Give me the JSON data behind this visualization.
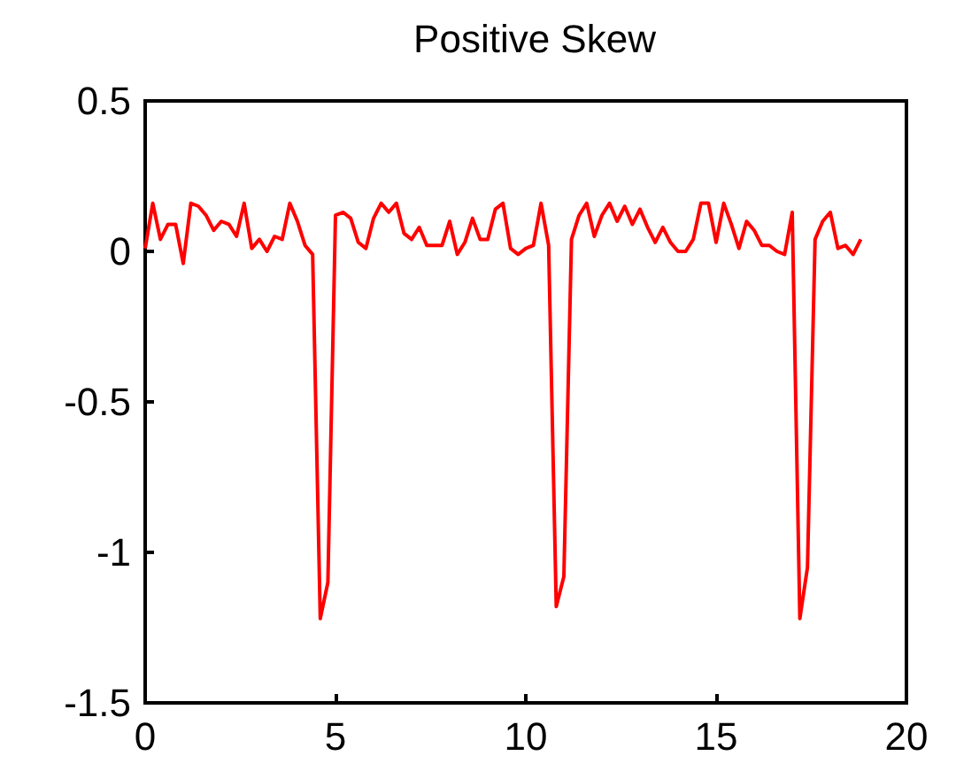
{
  "chart_data": {
    "type": "line",
    "title": "Positive Skew",
    "x": [
      0,
      0.2,
      0.4,
      0.6,
      0.8,
      1,
      1.2,
      1.4,
      1.6,
      1.8,
      2,
      2.2,
      2.4,
      2.6,
      2.8,
      3,
      3.2,
      3.4,
      3.6,
      3.8,
      4,
      4.2,
      4.4,
      4.6,
      4.8,
      5,
      5.2,
      5.4,
      5.6,
      5.8,
      6,
      6.2,
      6.4,
      6.6,
      6.8,
      7,
      7.2,
      7.4,
      7.6,
      7.8,
      8,
      8.2,
      8.4,
      8.6,
      8.8,
      9,
      9.2,
      9.4,
      9.6,
      9.8,
      10,
      10.2,
      10.4,
      10.6,
      10.8,
      11,
      11.2,
      11.4,
      11.6,
      11.8,
      12,
      12.2,
      12.4,
      12.6,
      12.8,
      13,
      13.2,
      13.4,
      13.6,
      13.8,
      14,
      14.2,
      14.4,
      14.6,
      14.8,
      15,
      15.2,
      15.4,
      15.6,
      15.8,
      16,
      16.2,
      16.4,
      16.6,
      16.8,
      17,
      17.2,
      17.4,
      17.6,
      17.8,
      18,
      18.2,
      18.4,
      18.6,
      18.8
    ],
    "series": [
      {
        "color": "#ff0000",
        "values": [
          0.01,
          0.16,
          0.04,
          0.09,
          0.09,
          -0.04,
          0.16,
          0.15,
          0.12,
          0.07,
          0.1,
          0.09,
          0.05,
          0.16,
          0.01,
          0.04,
          0,
          0.05,
          0.04,
          0.16,
          0.1,
          0.02,
          -0.01,
          -1.22,
          -1.1,
          0.12,
          0.13,
          0.11,
          0.03,
          0.01,
          0.11,
          0.16,
          0.13,
          0.16,
          0.06,
          0.04,
          0.08,
          0.02,
          0.02,
          0.02,
          0.1,
          -0.01,
          0.03,
          0.11,
          0.04,
          0.04,
          0.14,
          0.16,
          0.01,
          -0.01,
          0.01,
          0.02,
          0.16,
          0.02,
          -1.18,
          -1.08,
          0.04,
          0.12,
          0.16,
          0.05,
          0.12,
          0.16,
          0.1,
          0.15,
          0.09,
          0.14,
          0.08,
          0.03,
          0.08,
          0.03,
          0,
          0,
          0.04,
          0.16,
          0.16,
          0.03,
          0.16,
          0.09,
          0.01,
          0.1,
          0.07,
          0.02,
          0.02,
          0,
          -0.01,
          0.13,
          -1.22,
          -1.05,
          0.04,
          0.1,
          0.13,
          0.01,
          0.02,
          -0.01,
          0.04
        ]
      }
    ],
    "xlim": [
      0,
      20
    ],
    "xticks": [
      0,
      5,
      10,
      15,
      20
    ],
    "ylim": [
      -1.5,
      0.5
    ],
    "yticks": [
      -1.5,
      -1,
      -0.5,
      0,
      0.5
    ],
    "grid": false,
    "marker": "none",
    "line_style": "solid"
  }
}
